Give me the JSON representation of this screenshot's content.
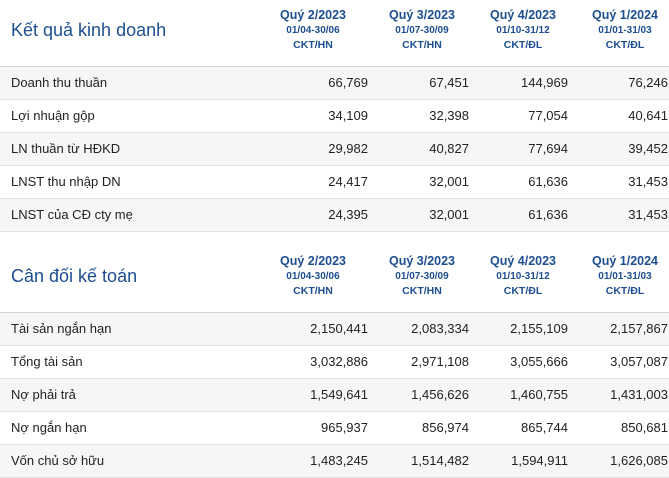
{
  "business_results": {
    "title": "Kết quả kinh doanh",
    "columns": [
      {
        "quarter": "Quý 2/2023",
        "dates": "01/04-30/06",
        "status": "CKT/HN"
      },
      {
        "quarter": "Quý 3/2023",
        "dates": "01/07-30/09",
        "status": "CKT/HN"
      },
      {
        "quarter": "Quý 4/2023",
        "dates": "01/10-31/12",
        "status": "CKT/ĐL"
      },
      {
        "quarter": "Quý 1/2024",
        "dates": "01/01-31/03",
        "status": "CKT/ĐL"
      }
    ],
    "rows": [
      {
        "label": "Doanh thu thuần",
        "values": [
          "66,769",
          "67,451",
          "144,969",
          "76,246"
        ]
      },
      {
        "label": "Lợi nhuận gộp",
        "values": [
          "34,109",
          "32,398",
          "77,054",
          "40,641"
        ]
      },
      {
        "label": "LN thuần từ HĐKD",
        "values": [
          "29,982",
          "40,827",
          "77,694",
          "39,452"
        ]
      },
      {
        "label": "LNST thu nhập DN",
        "values": [
          "24,417",
          "32,001",
          "61,636",
          "31,453"
        ]
      },
      {
        "label": "LNST của CĐ cty mẹ",
        "values": [
          "24,395",
          "32,001",
          "61,636",
          "31,453"
        ]
      }
    ]
  },
  "balance_sheet": {
    "title": "Cân đối kế toán",
    "columns": [
      {
        "quarter": "Quý 2/2023",
        "dates": "01/04-30/06",
        "status": "CKT/HN"
      },
      {
        "quarter": "Quý 3/2023",
        "dates": "01/07-30/09",
        "status": "CKT/HN"
      },
      {
        "quarter": "Quý 4/2023",
        "dates": "01/10-31/12",
        "status": "CKT/ĐL"
      },
      {
        "quarter": "Quý 1/2024",
        "dates": "01/01-31/03",
        "status": "CKT/ĐL"
      }
    ],
    "rows": [
      {
        "label": "Tài sản ngắn hạn",
        "values": [
          "2,150,441",
          "2,083,334",
          "2,155,109",
          "2,157,867"
        ]
      },
      {
        "label": "Tổng tài sản",
        "values": [
          "3,032,886",
          "2,971,108",
          "3,055,666",
          "3,057,087"
        ]
      },
      {
        "label": "Nợ phải trả",
        "values": [
          "1,549,641",
          "1,456,626",
          "1,460,755",
          "1,431,003"
        ]
      },
      {
        "label": "Nợ ngắn hạn",
        "values": [
          "965,937",
          "856,974",
          "865,744",
          "850,681"
        ]
      },
      {
        "label": "Vốn chủ sở hữu",
        "values": [
          "1,483,245",
          "1,514,482",
          "1,594,911",
          "1,626,085"
        ]
      }
    ]
  }
}
